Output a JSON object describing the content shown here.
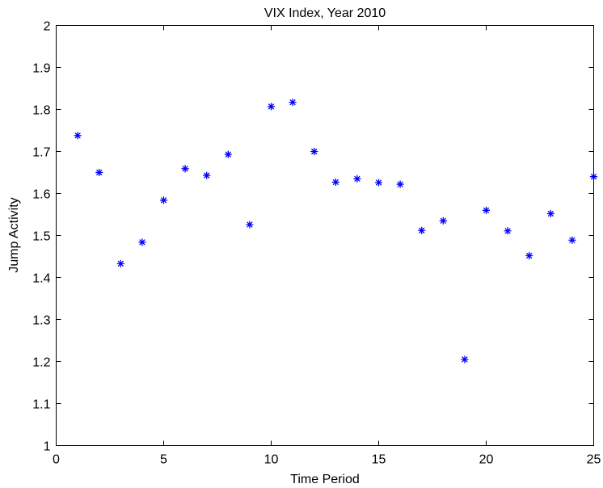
{
  "chart_data": {
    "type": "scatter",
    "title": "VIX Index, Year 2010",
    "xlabel": "Time Period",
    "ylabel": "Jump Activity",
    "xlim": [
      0,
      25
    ],
    "ylim": [
      1,
      2
    ],
    "xticks": [
      0,
      5,
      10,
      15,
      20,
      25
    ],
    "yticks": [
      1,
      1.1,
      1.2,
      1.3,
      1.4,
      1.5,
      1.6,
      1.7,
      1.8,
      1.9,
      2
    ],
    "grid": false,
    "marker": "*",
    "series": [
      {
        "color": "#0000ff",
        "x": [
          1,
          2,
          3,
          4,
          5,
          6,
          7,
          8,
          9,
          10,
          11,
          12,
          13,
          14,
          15,
          16,
          17,
          18,
          19,
          20,
          21,
          22,
          23,
          24,
          25
        ],
        "y": [
          1.738,
          1.65,
          1.433,
          1.484,
          1.584,
          1.659,
          1.643,
          1.693,
          1.526,
          1.807,
          1.817,
          1.7,
          1.627,
          1.635,
          1.626,
          1.622,
          1.512,
          1.535,
          1.205,
          1.56,
          1.511,
          1.452,
          1.552,
          1.489,
          1.64
        ]
      }
    ]
  }
}
